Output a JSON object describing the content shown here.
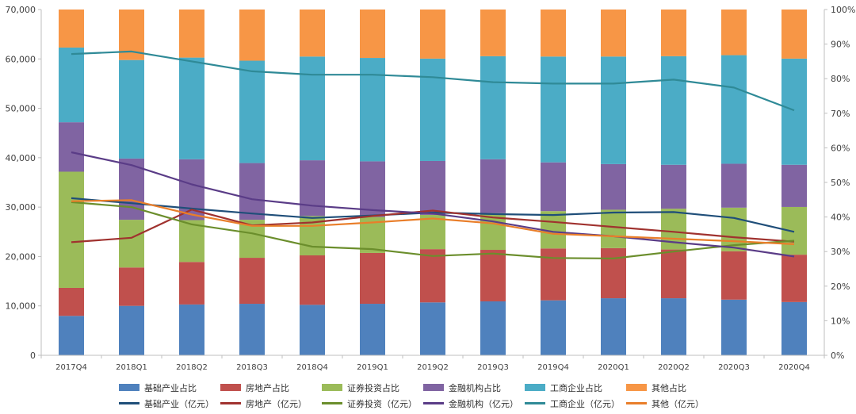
{
  "chart_data": {
    "type": "bar",
    "categories": [
      "2017Q4",
      "2018Q1",
      "2018Q2",
      "2018Q3",
      "2018Q4",
      "2019Q1",
      "2019Q2",
      "2019Q3",
      "2019Q4",
      "2020Q1",
      "2020Q2",
      "2020Q3",
      "2020Q4"
    ],
    "left_axis": {
      "ylim": [
        0,
        70000
      ],
      "ticks": [
        "0",
        "10,000",
        "20,000",
        "30,000",
        "40,000",
        "50,000",
        "60,000",
        "70,000"
      ]
    },
    "right_axis": {
      "ylim": [
        0,
        100
      ],
      "ticks": [
        "0%",
        "10%",
        "20%",
        "30%",
        "40%",
        "50%",
        "60%",
        "70%",
        "80%",
        "90%",
        "100%"
      ]
    },
    "grid": false,
    "legend_position": "bottom",
    "bar_series": [
      {
        "name": "基础产业占比",
        "color": "#4f81bd",
        "values": [
          11.4,
          14.3,
          14.7,
          14.9,
          14.6,
          14.9,
          15.3,
          15.6,
          15.9,
          16.5,
          16.5,
          16.1,
          15.4
        ]
      },
      {
        "name": "房地产占比",
        "color": "#c0504d",
        "values": [
          8.1,
          11.1,
          12.3,
          13.3,
          14.3,
          14.7,
          15.4,
          14.9,
          15.0,
          14.5,
          14.1,
          14.0,
          13.7
        ]
      },
      {
        "name": "证券投资占比",
        "color": "#9bbb59",
        "values": [
          33.6,
          13.8,
          12.1,
          11.0,
          11.4,
          10.4,
          9.9,
          10.6,
          10.8,
          11.1,
          11.8,
          12.6,
          13.8
        ]
      },
      {
        "name": "金融机构占比",
        "color": "#8064a2",
        "values": [
          14.3,
          17.7,
          17.6,
          16.4,
          16.1,
          16.1,
          15.6,
          15.6,
          14.1,
          13.2,
          12.7,
          12.7,
          12.2
        ]
      },
      {
        "name": "工商企业占比",
        "color": "#4bacc6",
        "values": [
          21.6,
          28.5,
          29.4,
          29.6,
          30.0,
          29.9,
          29.6,
          29.8,
          30.6,
          31.1,
          31.4,
          31.4,
          30.7
        ]
      },
      {
        "name": "其他占比",
        "color": "#f79646",
        "values": [
          11.0,
          14.6,
          13.9,
          14.8,
          13.6,
          14.0,
          14.2,
          13.5,
          13.6,
          13.6,
          13.5,
          13.2,
          14.2
        ]
      }
    ],
    "line_series": [
      {
        "name": "基础产业（亿元）",
        "color": "#1f4e79",
        "values": [
          31800,
          30800,
          29700,
          28700,
          27800,
          28300,
          28900,
          28600,
          28400,
          28900,
          29000,
          27800,
          25000
        ]
      },
      {
        "name": "房地产（亿元）",
        "color": "#a0322f",
        "values": [
          22900,
          23800,
          29500,
          26300,
          26900,
          28200,
          29300,
          27900,
          27000,
          26000,
          25000,
          23900,
          23000
        ]
      },
      {
        "name": "证券投资（亿元）",
        "color": "#6b8e2c",
        "values": [
          31000,
          30000,
          26500,
          24700,
          22000,
          21500,
          20100,
          20600,
          19700,
          19600,
          21000,
          22300,
          23200
        ]
      },
      {
        "name": "金融机构（亿元）",
        "color": "#5a3c87",
        "values": [
          41100,
          38500,
          34600,
          31600,
          30300,
          29400,
          28700,
          27100,
          25000,
          24100,
          22900,
          21800,
          20000
        ]
      },
      {
        "name": "工商企业（亿元）",
        "color": "#2f8a97",
        "values": [
          61000,
          61500,
          59500,
          57500,
          56800,
          56800,
          56300,
          55300,
          55000,
          55000,
          55800,
          54200,
          49600
        ]
      },
      {
        "name": "其他（亿元）",
        "color": "#e97e2a",
        "values": [
          31200,
          31400,
          28500,
          26200,
          26200,
          26900,
          27700,
          26700,
          24600,
          24100,
          23600,
          23100,
          22500
        ]
      }
    ]
  }
}
